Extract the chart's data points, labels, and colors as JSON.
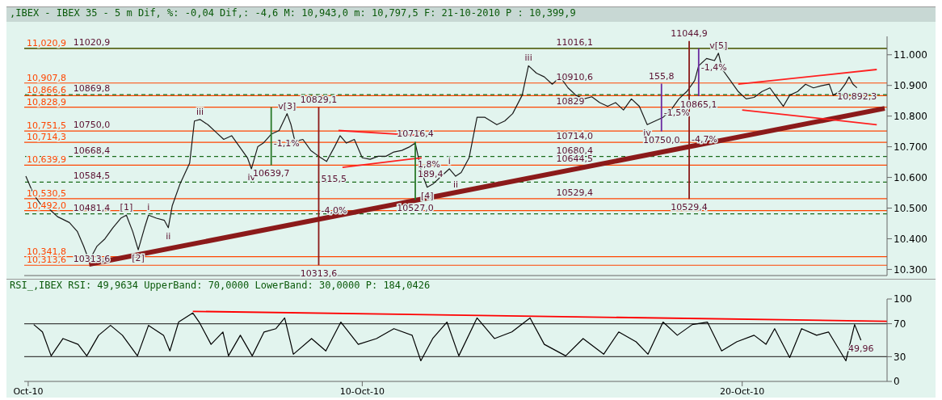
{
  "chart_data": [
    {
      "type": "line",
      "title": ",IBEX - IBEX 35 - 5 m Dif, %: -0,04 Dif,: -4,6 M: 10,943,0 m: 10,797,5 F: 21-10-2010 P : 10,399,9",
      "xlim": [
        "2010-10-01T02:30",
        "2010-10-23T19:30"
      ],
      "ylim": [
        10280,
        11060
      ],
      "yticks": [
        {
          "value": 10300,
          "label": "10.300"
        },
        {
          "value": 10400,
          "label": "10.400"
        },
        {
          "value": 10500,
          "label": "10.500"
        },
        {
          "value": 10600,
          "label": "10.600"
        },
        {
          "value": 10700,
          "label": "10.700"
        },
        {
          "value": 10800,
          "label": "10.800"
        },
        {
          "value": 10900,
          "label": "10.900"
        },
        {
          "value": 11000,
          "label": "11.000"
        }
      ],
      "tick_labels": "y",
      "series": [
        {
          "color": "#1a1a1a",
          "x": [
            "2010-10-01T03:30",
            "2010-10-01T08:30",
            "2010-10-01T13:30",
            "2010-10-01T18:30",
            "2010-10-01T23:30",
            "2010-10-02T07:00",
            "2010-10-02T12:00",
            "2010-10-02T16:00",
            "2010-10-02T19:30",
            "2010-10-03T00:30",
            "2010-10-03T05:30",
            "2010-10-03T10:30",
            "2010-10-03T15:30",
            "2010-10-03T19:00",
            "2010-10-03T23:00",
            "2010-10-04T02:30",
            "2010-10-04T06:30",
            "2010-10-04T09:00",
            "2010-10-04T14:00",
            "2010-10-04T19:00",
            "2010-10-04T21:30",
            "2010-10-05T00:00",
            "2010-10-05T05:00",
            "2010-10-05T11:00",
            "2010-10-05T14:00",
            "2010-10-05T17:30",
            "2010-10-05T22:30",
            "2010-10-06T03:30",
            "2010-10-06T08:30",
            "2010-10-06T13:30",
            "2010-10-06T18:30",
            "2010-10-06T23:30",
            "2010-10-07T02:00",
            "2010-10-07T06:00",
            "2010-10-07T09:30",
            "2010-10-07T14:30",
            "2010-10-07T19:30",
            "2010-10-08T00:30",
            "2010-10-08T03:00",
            "2010-10-08T05:30",
            "2010-10-08T10:30",
            "2010-10-08T15:30",
            "2010-10-08T20:30",
            "2010-10-09T01:30",
            "2010-10-09T06:30",
            "2010-10-09T10:00",
            "2010-10-09T14:00",
            "2010-10-09T19:00",
            "2010-10-10T00:00",
            "2010-10-10T05:00",
            "2010-10-10T10:00",
            "2010-10-10T15:00",
            "2010-10-10T20:00",
            "2010-10-11T01:00",
            "2010-10-11T06:00",
            "2010-10-11T09:30",
            "2010-10-11T13:30",
            "2010-10-11T17:00",
            "2010-10-11T21:00",
            "2010-10-12T02:00",
            "2010-10-12T07:00",
            "2010-10-12T11:00",
            "2010-10-12T14:30",
            "2010-10-12T19:30",
            "2010-10-13T00:30",
            "2010-10-13T05:30",
            "2010-10-13T13:00",
            "2010-10-13T18:00",
            "2010-10-13T23:00",
            "2010-10-14T05:00",
            "2010-10-14T09:00",
            "2010-10-14T14:00",
            "2010-10-14T19:00",
            "2010-10-15T00:00",
            "2010-10-15T05:00",
            "2010-10-15T10:00",
            "2010-10-15T15:00",
            "2010-10-15T20:00",
            "2010-10-16T01:00",
            "2010-10-16T06:00",
            "2010-10-16T11:00",
            "2010-10-16T16:00",
            "2010-10-16T21:00",
            "2010-10-17T02:00",
            "2010-10-17T07:00",
            "2010-10-17T12:00",
            "2010-10-17T17:00",
            "2010-10-17T22:00",
            "2010-10-18T03:00",
            "2010-10-18T08:00",
            "2010-10-18T13:00",
            "2010-10-18T18:00",
            "2010-10-18T20:30",
            "2010-10-19T01:30",
            "2010-10-19T06:30",
            "2010-10-19T09:00",
            "2010-10-19T11:30",
            "2010-10-19T16:30",
            "2010-10-19T21:30",
            "2010-10-20T02:30",
            "2010-10-20T07:30",
            "2010-10-20T12:30",
            "2010-10-20T17:30",
            "2010-10-20T22:30",
            "2010-10-21T02:00",
            "2010-10-21T06:00",
            "2010-10-21T11:00",
            "2010-10-21T16:00",
            "2010-10-21T21:00",
            "2010-10-22T02:00",
            "2010-10-22T07:00",
            "2010-10-22T09:30",
            "2010-10-22T13:30",
            "2010-10-22T17:00",
            "2010-10-22T19:30",
            "2010-10-22T22:00",
            "2010-10-23T00:30"
          ],
          "values": [
            10604,
            10544,
            10508,
            10496,
            10472,
            10453,
            10424,
            10376,
            10328,
            10376,
            10400,
            10436,
            10467,
            10477,
            10424,
            10364,
            10436,
            10477,
            10467,
            10460,
            10436,
            10508,
            10580,
            10647,
            10784,
            10789,
            10772,
            10748,
            10724,
            10736,
            10700,
            10664,
            10628,
            10700,
            10712,
            10741,
            10753,
            10808,
            10772,
            10717,
            10724,
            10688,
            10669,
            10652,
            10700,
            10736,
            10712,
            10724,
            10664,
            10659,
            10669,
            10669,
            10683,
            10688,
            10700,
            10712,
            10616,
            10568,
            10580,
            10604,
            10628,
            10604,
            10616,
            10664,
            10796,
            10796,
            10772,
            10784,
            10808,
            10868,
            10964,
            10940,
            10928,
            10904,
            10928,
            10892,
            10868,
            10856,
            10863,
            10844,
            10832,
            10844,
            10820,
            10856,
            10832,
            10772,
            10784,
            10796,
            10820,
            10856,
            10880,
            10916,
            10964,
            10988,
            10981,
            11005,
            10952,
            10916,
            10880,
            10856,
            10861,
            10880,
            10892,
            10856,
            10832,
            10868,
            10880,
            10904,
            10892,
            10899,
            10904,
            10868,
            10880,
            10904,
            10928,
            10904,
            10892.3
          ]
        },
        {
          "color": "#8b1a1a",
          "x": [
            "2010-10-02T19:30",
            "2010-10-23T18:00"
          ],
          "values": [
            10317,
            10825
          ]
        },
        {
          "color": "#ff2020",
          "x": [
            "2010-10-09T09:00",
            "2010-10-11T15:00"
          ],
          "values": [
            10753,
            10736
          ]
        },
        {
          "color": "#ff2020",
          "x": [
            "2010-10-09T11:30",
            "2010-10-11T13:30"
          ],
          "values": [
            10633,
            10664
          ]
        },
        {
          "color": "#ff2020",
          "x": [
            "2010-10-19T21:30",
            "2010-10-23T13:00"
          ],
          "values": [
            10904,
            10952
          ]
        },
        {
          "color": "#ff2020",
          "x": [
            "2010-10-20T00:00",
            "2010-10-23T13:00"
          ],
          "values": [
            10820,
            10772
          ]
        },
        {
          "color": "#8b1a1a",
          "x": [
            "2010-10-08T20:30",
            "2010-10-08T20:30"
          ],
          "values": [
            10829.1,
            10313.6
          ]
        },
        {
          "color": "#2a7a2a",
          "x": [
            "2010-10-07T14:30",
            "2010-10-07T14:30"
          ],
          "values": [
            10829.1,
            10639.7
          ]
        },
        {
          "color": "#2a7a2a",
          "x": [
            "2010-10-11T09:30",
            "2010-10-11T09:30"
          ],
          "values": [
            10716.4,
            10527.0
          ]
        },
        {
          "color": "#6a2aa0",
          "x": [
            "2010-10-17T21:00",
            "2010-10-17T21:00"
          ],
          "values": [
            10905.8,
            10750.0
          ]
        },
        {
          "color": "#6a2aa0",
          "x": [
            "2010-10-18T20:30",
            "2010-10-18T20:30"
          ],
          "values": [
            11020.9,
            10865.1
          ]
        },
        {
          "color": "#8b1a1a",
          "x": [
            "2010-10-18T14:30",
            "2010-10-18T14:30"
          ],
          "values": [
            11044.9,
            10529.4
          ]
        }
      ],
      "ref_lines": [
        {
          "axis": "y",
          "value": 11020.9,
          "label": "11,020,9",
          "color": "#ff4500",
          "line_style": "solid"
        },
        {
          "axis": "y",
          "value": 10907.8,
          "label": "10,907,8",
          "color": "#ff4500",
          "line_style": "solid"
        },
        {
          "axis": "y",
          "value": 10866.6,
          "label": "10,866,6",
          "color": "#ff4500",
          "line_style": "solid"
        },
        {
          "axis": "y",
          "value": 10828.9,
          "label": "10,828,9",
          "color": "#ff4500",
          "line_style": "solid"
        },
        {
          "axis": "y",
          "value": 10751.5,
          "label": "10,751,5",
          "color": "#ff4500",
          "line_style": "solid"
        },
        {
          "axis": "y",
          "value": 10714.3,
          "label": "10,714,3",
          "color": "#ff4500",
          "line_style": "solid"
        },
        {
          "axis": "y",
          "value": 10639.9,
          "label": "10,639,9",
          "color": "#ff4500",
          "line_style": "solid"
        },
        {
          "axis": "y",
          "value": 10530.5,
          "label": "10,530,5",
          "color": "#ff4500",
          "line_style": "solid"
        },
        {
          "axis": "y",
          "value": 10492,
          "label": "10,492,0",
          "color": "#ff4500",
          "line_style": "solid"
        },
        {
          "axis": "y",
          "value": 10341.8,
          "label": "10,341,8",
          "color": "#ff4500",
          "line_style": "solid"
        },
        {
          "axis": "y",
          "value": 10313.6,
          "label": "10,313,6",
          "color": "#ff4500",
          "line_style": "solid"
        },
        {
          "axis": "y",
          "value": 11020.9,
          "color": "#1a6b1a",
          "line_style": "solid"
        },
        {
          "axis": "y",
          "value": 10869.8,
          "color": "#1a6b1a",
          "line_style": "dashed"
        },
        {
          "axis": "y",
          "value": 10668.4,
          "color": "#1a6b1a",
          "line_style": "dashed"
        },
        {
          "axis": "y",
          "value": 10584.5,
          "color": "#1a6b1a",
          "line_style": "dashed"
        },
        {
          "axis": "y",
          "value": 10481.4,
          "color": "#1a6b1a",
          "line_style": "dashed"
        }
      ],
      "annotations": [
        {
          "text": "11020,9",
          "x": "2010-10-02T08:00",
          "y": 11020.9
        },
        {
          "text": "10869,8",
          "x": "2010-10-02T08:00",
          "y": 10869.8
        },
        {
          "text": "10750,0",
          "x": "2010-10-02T08:00",
          "y": 10751.5
        },
        {
          "text": "10668,4",
          "x": "2010-10-02T08:00",
          "y": 10668.4
        },
        {
          "text": "10584,5",
          "x": "2010-10-02T08:00",
          "y": 10584.5
        },
        {
          "text": "10481,4",
          "x": "2010-10-02T08:00",
          "y": 10481.4
        },
        {
          "text": "10313,6",
          "x": "2010-10-02T08:00",
          "y": 10313.6
        },
        {
          "text": "[1]",
          "x": "2010-10-03T19:00",
          "y": 10477
        },
        {
          "text": "i",
          "x": "2010-10-04T09:00",
          "y": 10477
        },
        {
          "text": "ii",
          "x": "2010-10-04T21:30",
          "y": 10436
        },
        {
          "text": "[2]",
          "x": "2010-10-04T02:30",
          "y": 10364
        },
        {
          "text": "iii",
          "x": "2010-10-05T17:30",
          "y": 10789
        },
        {
          "text": "iv",
          "x": "2010-10-07T02:00",
          "y": 10628
        },
        {
          "text": "v[3]",
          "x": "2010-10-08T00:30",
          "y": 10808
        },
        {
          "text": "10829,1",
          "x": "2010-10-08T20:30",
          "y": 10829.1
        },
        {
          "text": "10313,6",
          "x": "2010-10-08T20:30",
          "y": 10313.6
        },
        {
          "text": "-4,0%",
          "x": "2010-10-08T20:30",
          "y": 10473
        },
        {
          "text": "515,5",
          "x": "2010-10-08T20:30",
          "y": 10575
        },
        {
          "text": "10639,7",
          "x": "2010-10-07T14:30",
          "y": 10639.7
        },
        {
          "text": "-1,1%",
          "x": "2010-10-07T14:30",
          "y": 10690
        },
        {
          "text": "10716,4",
          "x": "2010-10-11T09:30",
          "y": 10716.4
        },
        {
          "text": "1,8%",
          "x": "2010-10-11T09:30",
          "y": 10622
        },
        {
          "text": "189,4",
          "x": "2010-10-11T09:30",
          "y": 10590
        },
        {
          "text": "10527,0",
          "x": "2010-10-11T09:30",
          "y": 10527.0
        },
        {
          "text": "[4]",
          "x": "2010-10-11T17:00",
          "y": 10568
        },
        {
          "text": "i",
          "x": "2010-10-12T07:00",
          "y": 10628
        },
        {
          "text": "ii",
          "x": "2010-10-12T11:00",
          "y": 10604
        },
        {
          "text": "iii",
          "x": "2010-10-14T09:00",
          "y": 10964
        },
        {
          "text": "11016,1",
          "x": "2010-10-15T01:00",
          "y": 11020.9
        },
        {
          "text": "10910,6",
          "x": "2010-10-15T01:00",
          "y": 10907.8
        },
        {
          "text": "10829",
          "x": "2010-10-15T01:00",
          "y": 10828.9
        },
        {
          "text": "10714,0",
          "x": "2010-10-15T01:00",
          "y": 10714.3
        },
        {
          "text": "10680,4",
          "x": "2010-10-15T01:00",
          "y": 10668.4
        },
        {
          "text": "10644,5",
          "x": "2010-10-15T01:00",
          "y": 10639.9
        },
        {
          "text": "10529,4",
          "x": "2010-10-15T01:00",
          "y": 10530.5
        },
        {
          "text": "iv",
          "x": "2010-10-17T12:00",
          "y": 10772
        },
        {
          "text": "155,8",
          "x": "2010-10-17T21:00",
          "y": 10905.8
        },
        {
          "text": "-1,5%",
          "x": "2010-10-17T21:00",
          "y": 10790
        },
        {
          "text": "10750,0",
          "x": "2010-10-17T21:00",
          "y": 10750.0
        },
        {
          "text": "-1,4%",
          "x": "2010-10-18T20:30",
          "y": 10940
        },
        {
          "text": "10865,1",
          "x": "2010-10-18T20:30",
          "y": 10865.1
        },
        {
          "text": "11044,9",
          "x": "2010-10-18T14:30",
          "y": 11044.9
        },
        {
          "text": "-4,7%",
          "x": "2010-10-18T14:30",
          "y": 10705
        },
        {
          "text": "10529,4",
          "x": "2010-10-18T14:30",
          "y": 10529.4
        },
        {
          "text": "v[5]",
          "x": "2010-10-19T09:00",
          "y": 11005
        },
        {
          "text": "10,892,3",
          "x": "2010-10-23T00:30",
          "y": 10892.3
        }
      ]
    },
    {
      "type": "line",
      "title": "RSI_,IBEX RSI: 49,9634 UpperBand: 70,0000 LowerBand: 30,0000 P: 184,0426",
      "xlim": [
        "2010-10-01T02:30",
        "2010-10-23T19:30"
      ],
      "ylim": [
        0,
        100
      ],
      "yticks": [
        0,
        30,
        70,
        100
      ],
      "xticks": [
        {
          "value": "2010-10-01T05:00",
          "label": "Oct-10"
        },
        {
          "value": "2010-10-10T00:00",
          "label": "10-Oct-10"
        },
        {
          "value": "2010-10-20T00:00",
          "label": "20-Oct-10"
        }
      ],
      "series": [
        {
          "color": "#000000",
          "x": [
            "2010-10-01T08:30",
            "2010-10-01T14:00",
            "2010-10-01T19:30",
            "2010-10-02T03:00",
            "2010-10-02T12:30",
            "2010-10-02T18:00",
            "2010-10-03T01:30",
            "2010-10-03T09:00",
            "2010-10-03T16:30",
            "2010-10-04T02:00",
            "2010-10-04T09:00",
            "2010-10-04T18:30",
            "2010-10-04T22:30",
            "2010-10-05T04:00",
            "2010-10-05T13:00",
            "2010-10-05T17:00",
            "2010-10-06T00:30",
            "2010-10-06T08:00",
            "2010-10-06T11:30",
            "2010-10-06T19:00",
            "2010-10-07T02:30",
            "2010-10-07T10:00",
            "2010-10-07T17:30",
            "2010-10-07T23:00",
            "2010-10-08T04:30",
            "2010-10-08T16:00",
            "2010-10-09T01:00",
            "2010-10-09T10:30",
            "2010-10-09T21:30",
            "2010-10-10T09:00",
            "2010-10-10T20:00",
            "2010-10-11T07:30",
            "2010-10-11T13:00",
            "2010-10-11T20:30",
            "2010-10-12T05:30",
            "2010-10-12T13:00",
            "2010-10-13T00:30",
            "2010-10-13T11:30",
            "2010-10-13T22:30",
            "2010-10-14T10:00",
            "2010-10-14T19:00",
            "2010-10-15T08:30",
            "2010-10-15T19:30",
            "2010-10-16T08:30",
            "2010-10-16T18:00",
            "2010-10-17T05:00",
            "2010-10-17T12:30",
            "2010-10-17T22:00",
            "2010-10-18T07:00",
            "2010-10-18T16:30",
            "2010-10-19T02:00",
            "2010-10-19T11:00",
            "2010-10-19T20:30",
            "2010-10-20T07:30",
            "2010-10-20T15:00",
            "2010-10-20T20:30",
            "2010-10-21T06:00",
            "2010-10-21T13:30",
            "2010-10-21T23:00",
            "2010-10-22T06:30",
            "2010-10-22T17:30",
            "2010-10-22T23:00",
            "2010-10-23T03:00"
          ],
          "values": [
            69,
            60,
            31,
            52,
            45,
            31,
            56,
            68,
            56,
            31,
            68,
            56,
            37,
            72,
            83,
            72,
            45,
            60,
            31,
            56,
            31,
            60,
            64,
            77,
            33,
            52,
            37,
            72,
            45,
            52,
            64,
            56,
            25,
            52,
            72,
            31,
            77,
            52,
            60,
            77,
            45,
            31,
            52,
            33,
            60,
            48,
            33,
            72,
            56,
            69,
            72,
            37,
            48,
            56,
            45,
            64,
            29,
            64,
            56,
            60,
            25,
            69,
            49.96
          ]
        },
        {
          "color": "#ff0000",
          "x": [
            "2010-10-05T13:00",
            "2010-10-23T19:30"
          ],
          "values": [
            85,
            73
          ]
        }
      ],
      "ref_lines": [
        {
          "axis": "y",
          "value": 70,
          "color": "#404040",
          "line_style": "solid"
        },
        {
          "axis": "y",
          "value": 30,
          "color": "#404040",
          "line_style": "solid"
        }
      ],
      "annotations": [
        {
          "text": "49,96",
          "x": "2010-10-23T03:00",
          "y": 49.96
        }
      ]
    }
  ]
}
